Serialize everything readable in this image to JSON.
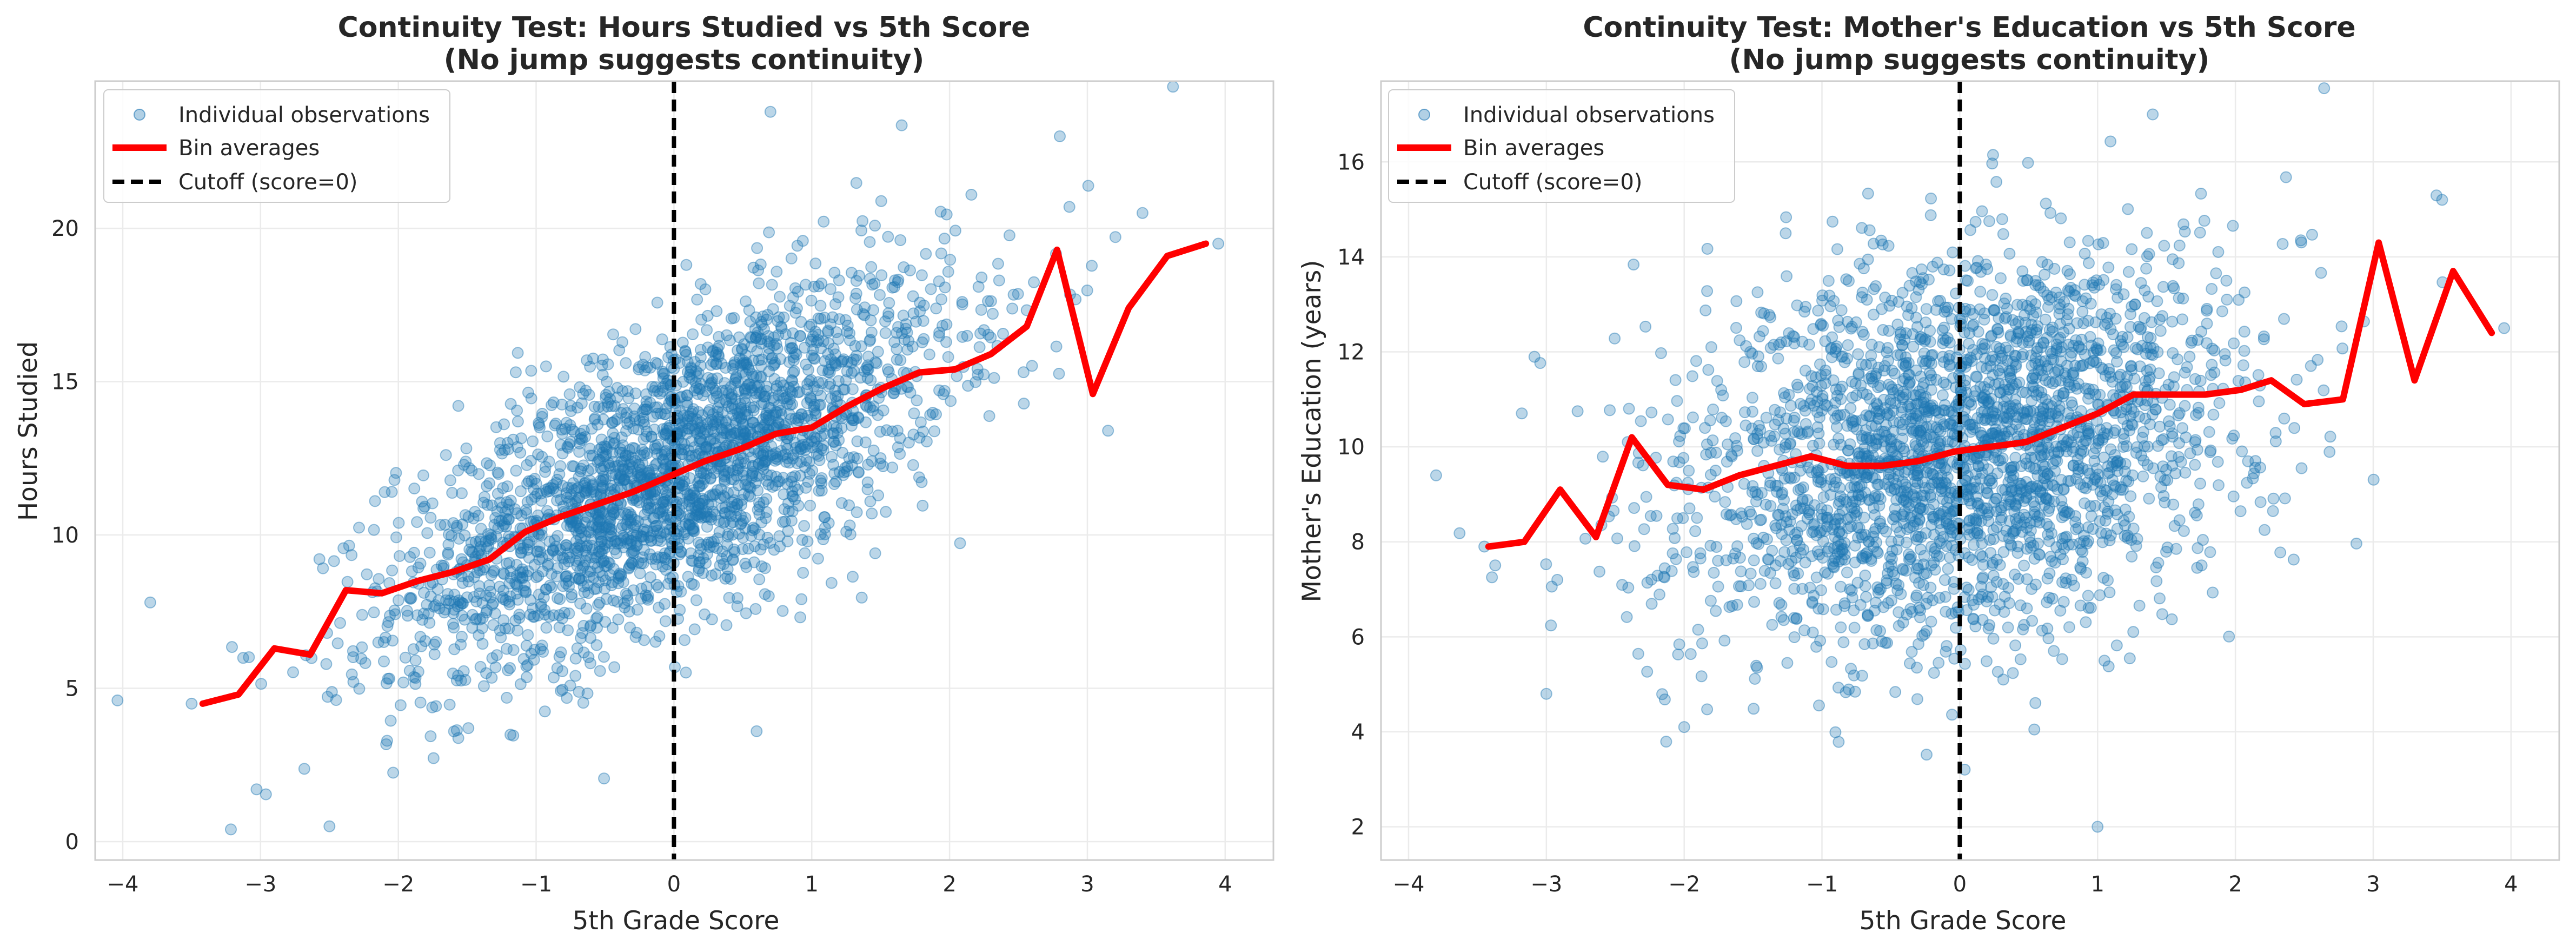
{
  "colors": {
    "points": "#1f77b4",
    "bin_line": "#ff0000",
    "cutoff": "#000000",
    "grid": "#ebebeb",
    "frame": "#cccccc"
  },
  "chart_data": [
    {
      "type": "scatter",
      "title_line1": "Continuity Test: Hours Studied vs 5th Score",
      "title_line2": "(No jump suggests continuity)",
      "xlabel": "5th Grade Score",
      "ylabel": "Hours Studied",
      "xlim": [
        -4.2,
        4.35
      ],
      "ylim": [
        -0.6,
        24.8
      ],
      "xticks": [
        -4,
        -3,
        -2,
        -1,
        0,
        1,
        2,
        3,
        4
      ],
      "yticks": [
        0,
        5,
        10,
        15,
        20
      ],
      "grid": true,
      "legend_position": "top-left",
      "legend": {
        "points": "Individual observations",
        "bins": "Bin averages",
        "cutoff": "Cutoff (score=0)"
      },
      "cutoff_x": 0,
      "scatter_trend": {
        "intercept": 12.0,
        "slope": 2.1,
        "noise_sd": 2.3
      },
      "outliers": [
        {
          "x": -3.8,
          "y": 7.8
        },
        {
          "x": -3.5,
          "y": 4.5
        },
        {
          "x": -2.5,
          "y": 0.5
        },
        {
          "x": 0.7,
          "y": 23.8
        },
        {
          "x": 2.8,
          "y": 23.0
        },
        {
          "x": 3.4,
          "y": 20.5
        },
        {
          "x": 3.95,
          "y": 19.5
        },
        {
          "x": 3.15,
          "y": 13.4
        },
        {
          "x": 0.6,
          "y": 3.6
        }
      ],
      "bin_averages": {
        "x": [
          -3.42,
          -3.16,
          -2.9,
          -2.64,
          -2.38,
          -2.12,
          -1.86,
          -1.6,
          -1.34,
          -1.08,
          -0.82,
          -0.56,
          -0.3,
          -0.04,
          0.22,
          0.48,
          0.74,
          1.0,
          1.26,
          1.52,
          1.78,
          2.04,
          2.3,
          2.56,
          2.78,
          3.04,
          3.3,
          3.58,
          3.86
        ],
        "y": [
          4.5,
          4.8,
          6.3,
          6.1,
          8.2,
          8.1,
          8.5,
          8.8,
          9.2,
          10.1,
          10.6,
          11.0,
          11.4,
          11.9,
          12.4,
          12.8,
          13.3,
          13.5,
          14.2,
          14.8,
          15.3,
          15.4,
          15.9,
          16.8,
          19.3,
          14.6,
          17.4,
          19.1,
          19.5
        ]
      }
    },
    {
      "type": "scatter",
      "title_line1": "Continuity Test: Mother's Education vs 5th Score",
      "title_line2": "(No jump suggests continuity)",
      "xlabel": "5th Grade Score",
      "ylabel": "Mother's Education (years)",
      "xlim": [
        -4.2,
        4.35
      ],
      "ylim": [
        1.3,
        17.7
      ],
      "xticks": [
        -4,
        -3,
        -2,
        -1,
        0,
        1,
        2,
        3,
        4
      ],
      "yticks": [
        2,
        4,
        6,
        8,
        10,
        12,
        14,
        16
      ],
      "grid": true,
      "legend_position": "top-left",
      "legend": {
        "points": "Individual observations",
        "bins": "Bin averages",
        "cutoff": "Cutoff (score=0)"
      },
      "cutoff_x": 0,
      "scatter_trend": {
        "intercept": 10.0,
        "slope": 0.55,
        "noise_sd": 2.0
      },
      "outliers": [
        {
          "x": -3.8,
          "y": 9.4
        },
        {
          "x": -3.45,
          "y": 7.9
        },
        {
          "x": 1.0,
          "y": 2.0
        },
        {
          "x": 1.4,
          "y": 17.0
        },
        {
          "x": 3.95,
          "y": 12.5
        },
        {
          "x": 3.5,
          "y": 15.2
        },
        {
          "x": -3.0,
          "y": 4.8
        },
        {
          "x": -2.0,
          "y": 4.1
        }
      ],
      "bin_averages": {
        "x": [
          -3.42,
          -3.16,
          -2.9,
          -2.64,
          -2.38,
          -2.12,
          -1.86,
          -1.6,
          -1.34,
          -1.08,
          -0.82,
          -0.56,
          -0.3,
          -0.04,
          0.22,
          0.48,
          0.74,
          1.0,
          1.26,
          1.52,
          1.78,
          2.04,
          2.26,
          2.5,
          2.78,
          3.04,
          3.3,
          3.58,
          3.86
        ],
        "y": [
          7.9,
          8.0,
          9.1,
          8.1,
          10.2,
          9.2,
          9.1,
          9.4,
          9.6,
          9.8,
          9.6,
          9.6,
          9.7,
          9.9,
          10.0,
          10.1,
          10.4,
          10.7,
          11.1,
          11.1,
          11.1,
          11.2,
          11.4,
          10.9,
          11.0,
          14.3,
          11.4,
          13.7,
          12.4
        ]
      }
    }
  ]
}
